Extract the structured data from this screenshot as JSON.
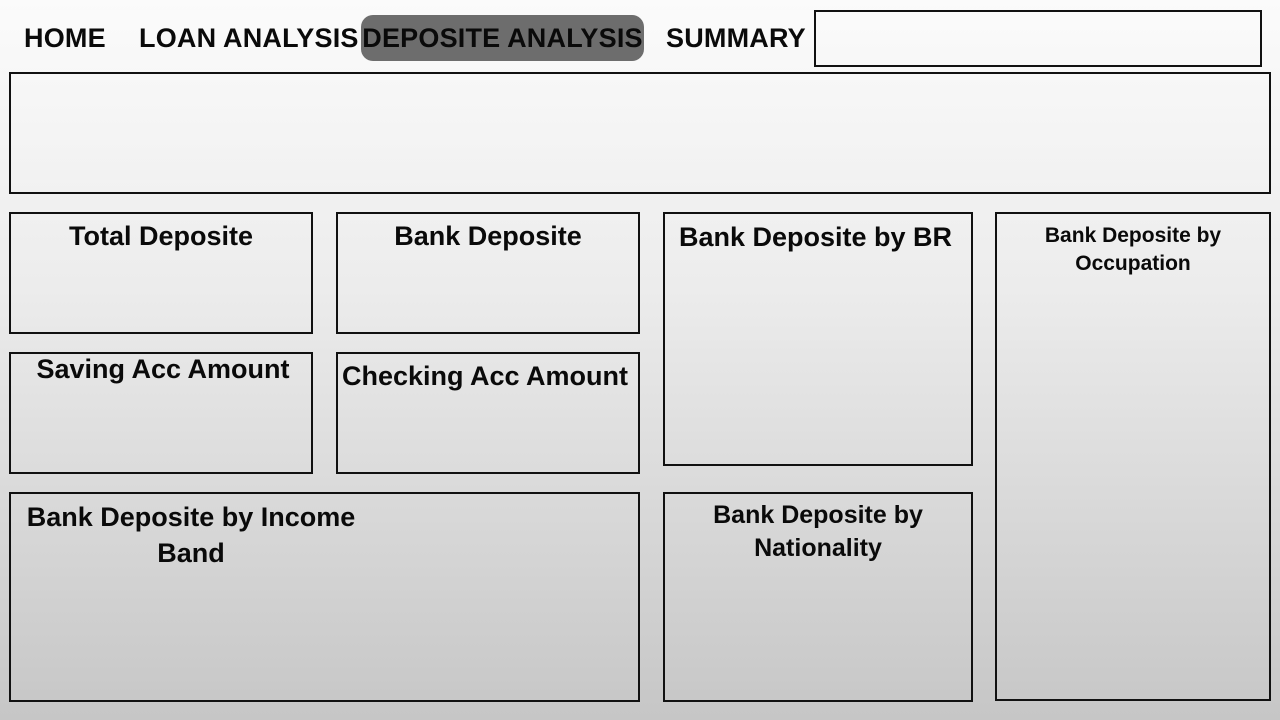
{
  "nav": {
    "home": "HOME",
    "loan_analysis": "LOAN ANALYSIS",
    "deposite_analysis": "DEPOSITE ANALYSIS",
    "summary": "SUMMARY"
  },
  "panels": {
    "total_deposite": "Total Deposite",
    "bank_deposite": "Bank Deposite",
    "bank_deposite_by_br": "Bank Deposite by BR",
    "bank_deposite_by_occupation_line1": "Bank Deposite by",
    "bank_deposite_by_occupation_line2": "Occupation",
    "saving_acc_amount": "Saving Acc Amount",
    "checking_acc_amount": "Checking Acc Amount",
    "bank_deposite_by_income_band_line1": "Bank Deposite by Income",
    "bank_deposite_by_income_band_line2": "Band",
    "bank_deposite_by_nationality_line1": "Bank Deposite by",
    "bank_deposite_by_nationality_line2": "Nationality"
  },
  "colors": {
    "active_tab_bg": "#6d6d6d",
    "border": "#111111"
  }
}
